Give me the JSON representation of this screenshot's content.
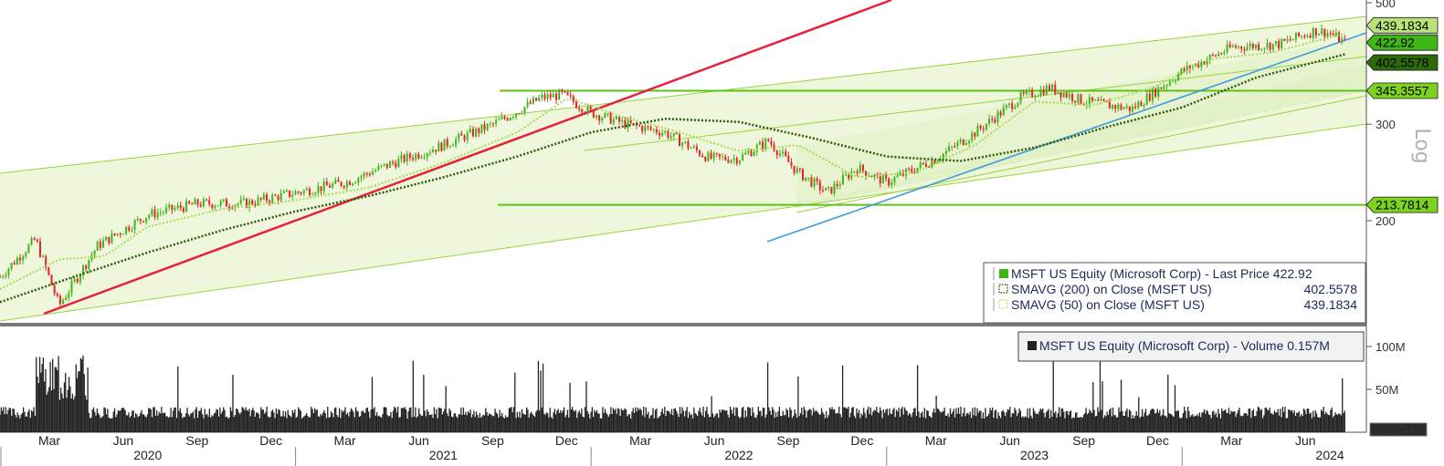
{
  "chart_data": {
    "type": "candlestick-line",
    "scale": "log",
    "scale_label": "Log",
    "price_axis": {
      "ticks": [
        "500",
        "300",
        "200"
      ],
      "tick_values": [
        500,
        300,
        200
      ]
    },
    "volume_axis": {
      "ticks": [
        "100M",
        "50M"
      ],
      "tick_values": [
        100,
        50
      ],
      "last_label": "0.157M"
    },
    "months": [
      "Mar",
      "Jun",
      "Sep",
      "Dec",
      "Mar",
      "Jun",
      "Sep",
      "Dec",
      "Mar",
      "Jun",
      "Sep",
      "Dec",
      "Mar",
      "Jun",
      "Sep",
      "Dec",
      "Mar",
      "Jun"
    ],
    "years": [
      "2020",
      "2021",
      "2022",
      "2023",
      "2024"
    ],
    "price_tags": [
      {
        "label": "439.1834",
        "value": 439.1834,
        "color": "#b9e27a"
      },
      {
        "label": "422.92",
        "value": 422.92,
        "color": "#3fb618"
      },
      {
        "label": "402.5578",
        "value": 402.5578,
        "color": "#2d6a0a"
      },
      {
        "label": "345.3557",
        "value": 345.3557,
        "color": "#7ed321"
      },
      {
        "label": "213.7814",
        "value": 213.7814,
        "color": "#7ed321"
      }
    ],
    "horizontal_levels": [
      345.3557,
      213.7814
    ],
    "price_series": {
      "name": "MSFT US Equity (Microsoft Corp) - Last Price",
      "x": [
        2020.0,
        2020.12,
        2020.2,
        2020.33,
        2020.5,
        2020.67,
        2020.83,
        2021.0,
        2021.17,
        2021.33,
        2021.5,
        2021.67,
        2021.83,
        2021.9,
        2022.0,
        2022.12,
        2022.25,
        2022.4,
        2022.5,
        2022.6,
        2022.7,
        2022.8,
        2022.9,
        2023.0,
        2023.17,
        2023.3,
        2023.45,
        2023.55,
        2023.67,
        2023.83,
        2024.0,
        2024.17,
        2024.33,
        2024.45,
        2024.5,
        2024.55
      ],
      "y": [
        158,
        185,
        140,
        180,
        205,
        215,
        215,
        225,
        235,
        255,
        275,
        300,
        335,
        340,
        315,
        300,
        290,
        260,
        260,
        280,
        245,
        225,
        250,
        235,
        260,
        290,
        335,
        350,
        330,
        320,
        375,
        415,
        420,
        445,
        440,
        422.92
      ]
    },
    "sma200": {
      "name": "SMAVG (200) on Close (MSFT US)",
      "last": 402.5578,
      "x": [
        2020.0,
        2020.25,
        2020.5,
        2020.75,
        2021.0,
        2021.25,
        2021.5,
        2021.75,
        2022.0,
        2022.25,
        2022.5,
        2022.75,
        2023.0,
        2023.25,
        2023.5,
        2023.75,
        2024.0,
        2024.25,
        2024.55
      ],
      "y": [
        142,
        158,
        175,
        192,
        208,
        222,
        240,
        262,
        290,
        307,
        303,
        283,
        262,
        257,
        272,
        297,
        322,
        365,
        402.5578
      ]
    },
    "sma50": {
      "name": "SMAVG (50) on Close (MSFT US)",
      "last": 439.1834,
      "x": [
        2020.0,
        2020.2,
        2020.35,
        2020.5,
        2020.75,
        2021.0,
        2021.25,
        2021.5,
        2021.75,
        2021.92,
        2022.1,
        2022.3,
        2022.5,
        2022.7,
        2022.9,
        2023.1,
        2023.3,
        2023.5,
        2023.7,
        2023.9,
        2024.1,
        2024.3,
        2024.55
      ],
      "y": [
        150,
        170,
        172,
        195,
        210,
        218,
        230,
        255,
        290,
        335,
        310,
        290,
        268,
        275,
        240,
        245,
        275,
        330,
        325,
        350,
        395,
        405,
        439.1834
      ]
    },
    "volume_series": {
      "name": "MSFT US Equity (Microsoft Corp) - Volume",
      "last": 0.157
    },
    "legend_price": [
      {
        "text": "MSFT US Equity (Microsoft Corp) - Last Price 422.92",
        "value": "",
        "style": "solid",
        "color": "#3fb618"
      },
      {
        "text": "SMAVG (200)  on Close (MSFT US)",
        "value": "402.5578",
        "style": "dotted",
        "color": "#2d6a0a"
      },
      {
        "text": "SMAVG (50)  on Close (MSFT US)",
        "value": "439.1834",
        "style": "dotted",
        "color": "#b9e27a"
      }
    ],
    "legend_volume": "MSFT US Equity (Microsoft Corp) - Volume 0.157M",
    "colors": {
      "up": "#3fb618",
      "down": "#e8202a",
      "channel_fill": "#eef6dc",
      "channel_line": "#9ad43a",
      "red_trend": "#e8213a",
      "blue_trend": "#3b9ce0",
      "level": "#5fc21a",
      "volume": "#222222"
    }
  }
}
